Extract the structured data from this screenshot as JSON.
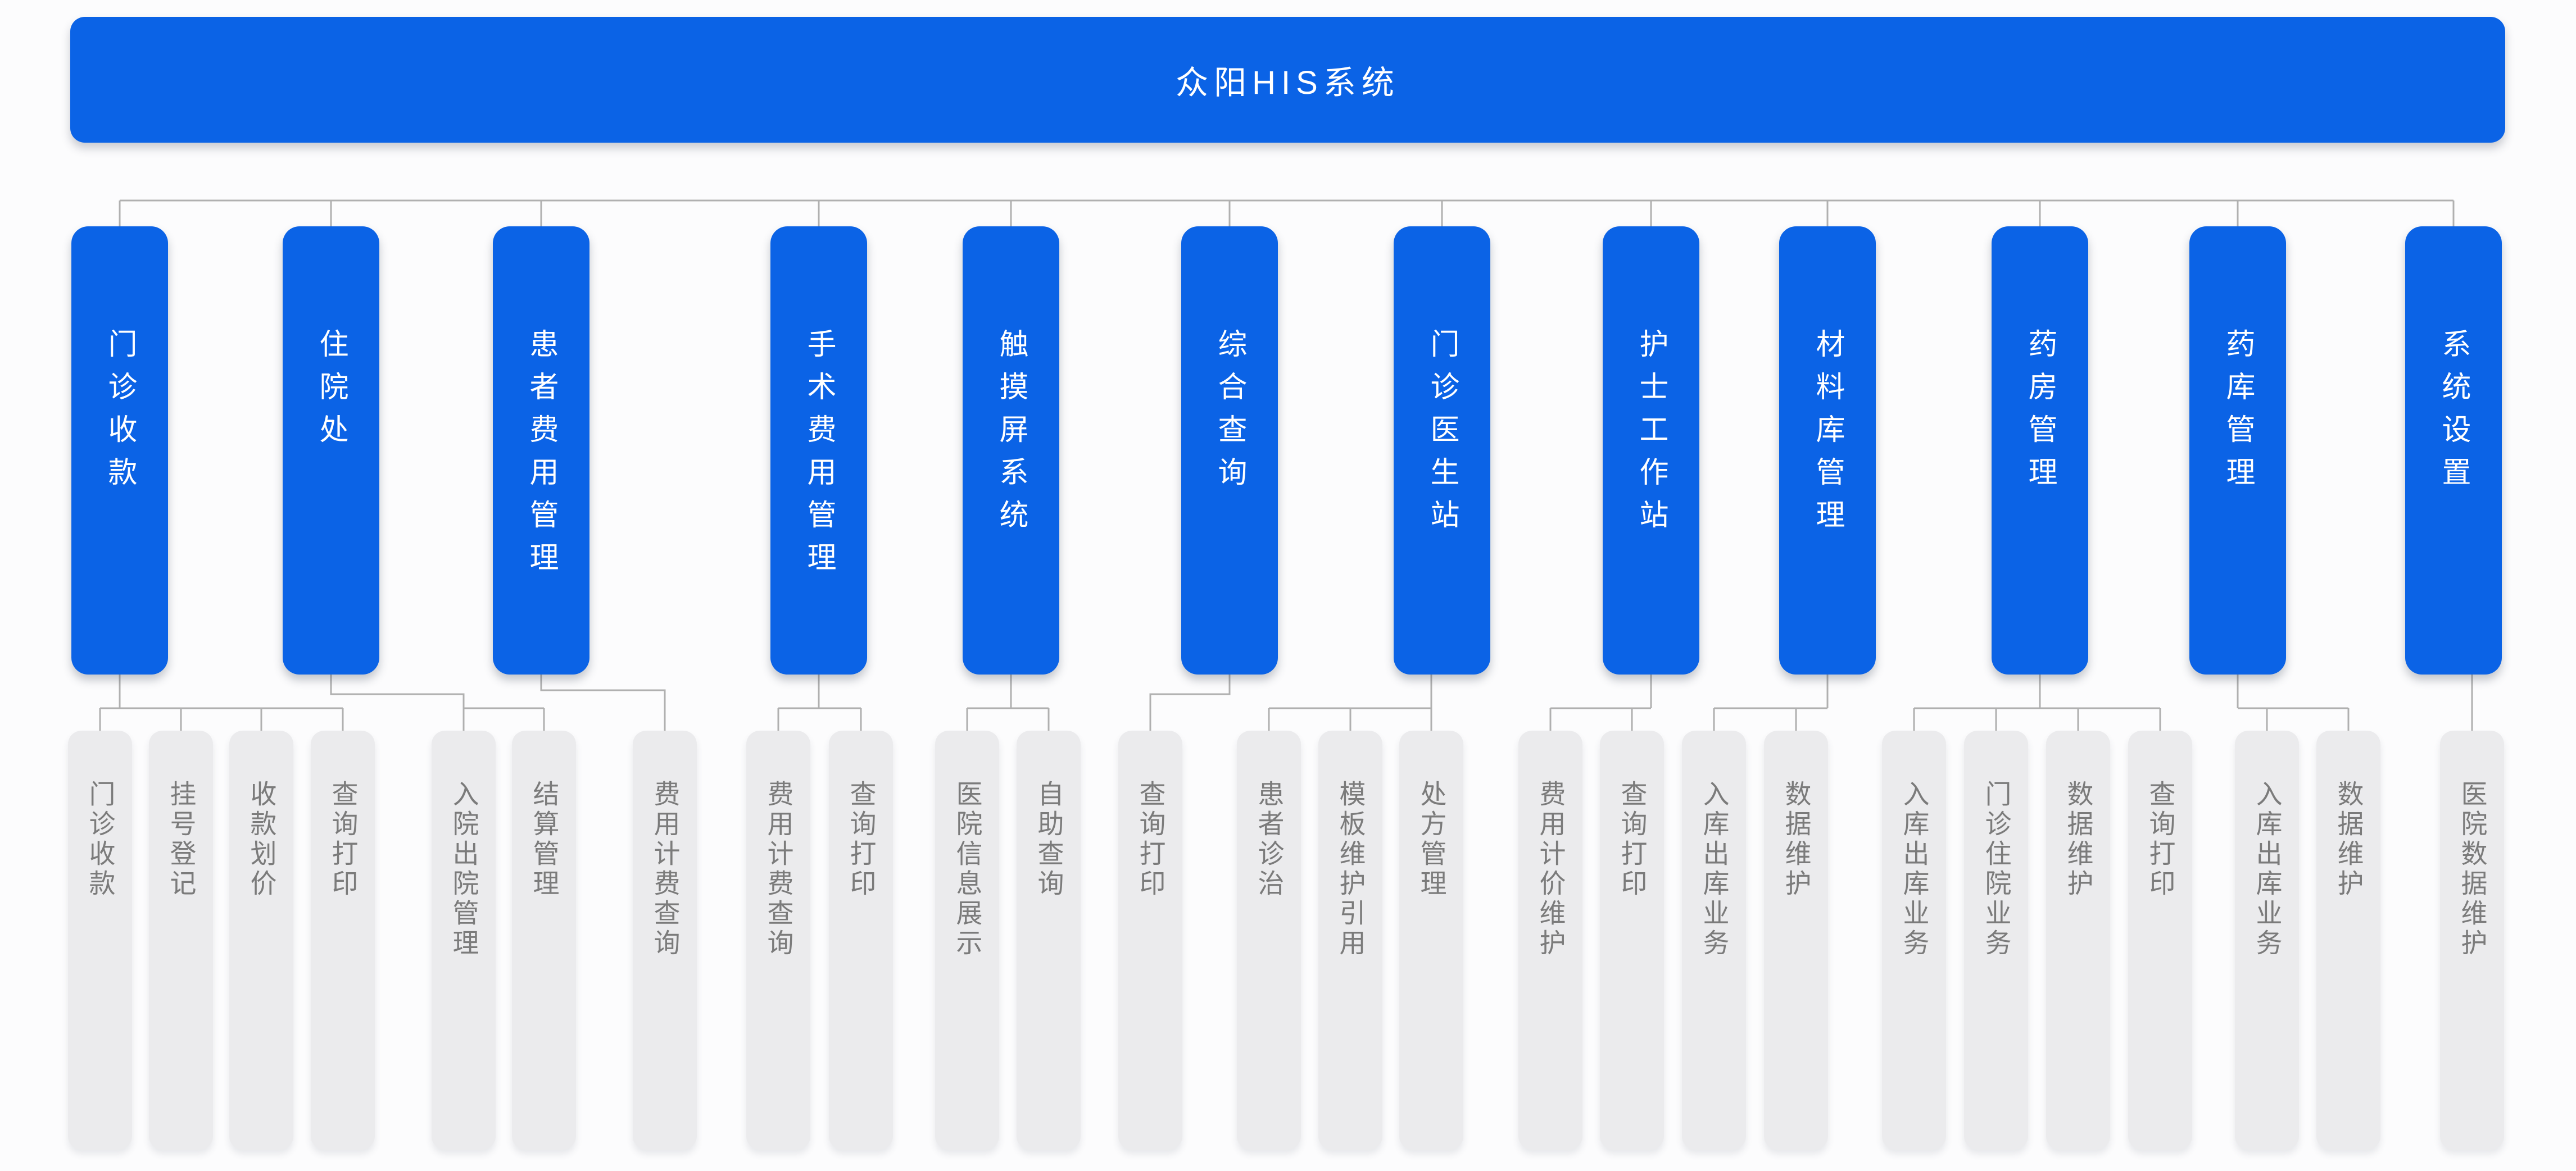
{
  "title": "众阳HIS系统",
  "colors": {
    "primary": "#0b63e6",
    "child_bg": "#ebebed",
    "child_text": "#7b7b7b",
    "line": "#b0b0b0",
    "background": "#fcfcfd",
    "title_text": "#ffffff"
  },
  "modules": [
    {
      "label": "门诊收款",
      "children": [
        "门诊收款",
        "挂号登记",
        "收款划价",
        "查询打印"
      ]
    },
    {
      "label": "住院处",
      "children": [
        "入院出院管理",
        "结算管理"
      ]
    },
    {
      "label": "患者费用管理",
      "children": [
        "费用计费查询"
      ]
    },
    {
      "label": "手术费用管理",
      "children": [
        "费用计费查询",
        "查询打印"
      ]
    },
    {
      "label": "触摸屏系统",
      "children": [
        "医院信息展示",
        "自助查询"
      ]
    },
    {
      "label": "综合查询",
      "children": [
        "查询打印"
      ]
    },
    {
      "label": "门诊医生站",
      "children": [
        "患者诊治",
        "模板维护引用",
        "处方管理"
      ]
    },
    {
      "label": "护士工作站",
      "children": [
        "费用计价维护",
        "查询打印"
      ]
    },
    {
      "label": "材料库管理",
      "children": [
        "入库出库业务",
        "数据维护"
      ]
    },
    {
      "label": "药房管理",
      "children": [
        "入库出库业务",
        "门诊住院业务",
        "数据维护",
        "查询打印"
      ]
    },
    {
      "label": "药库管理",
      "children": [
        "入库出库业务",
        "数据维护"
      ]
    },
    {
      "label": "系统设置",
      "children": [
        "医院数据维护"
      ]
    }
  ]
}
